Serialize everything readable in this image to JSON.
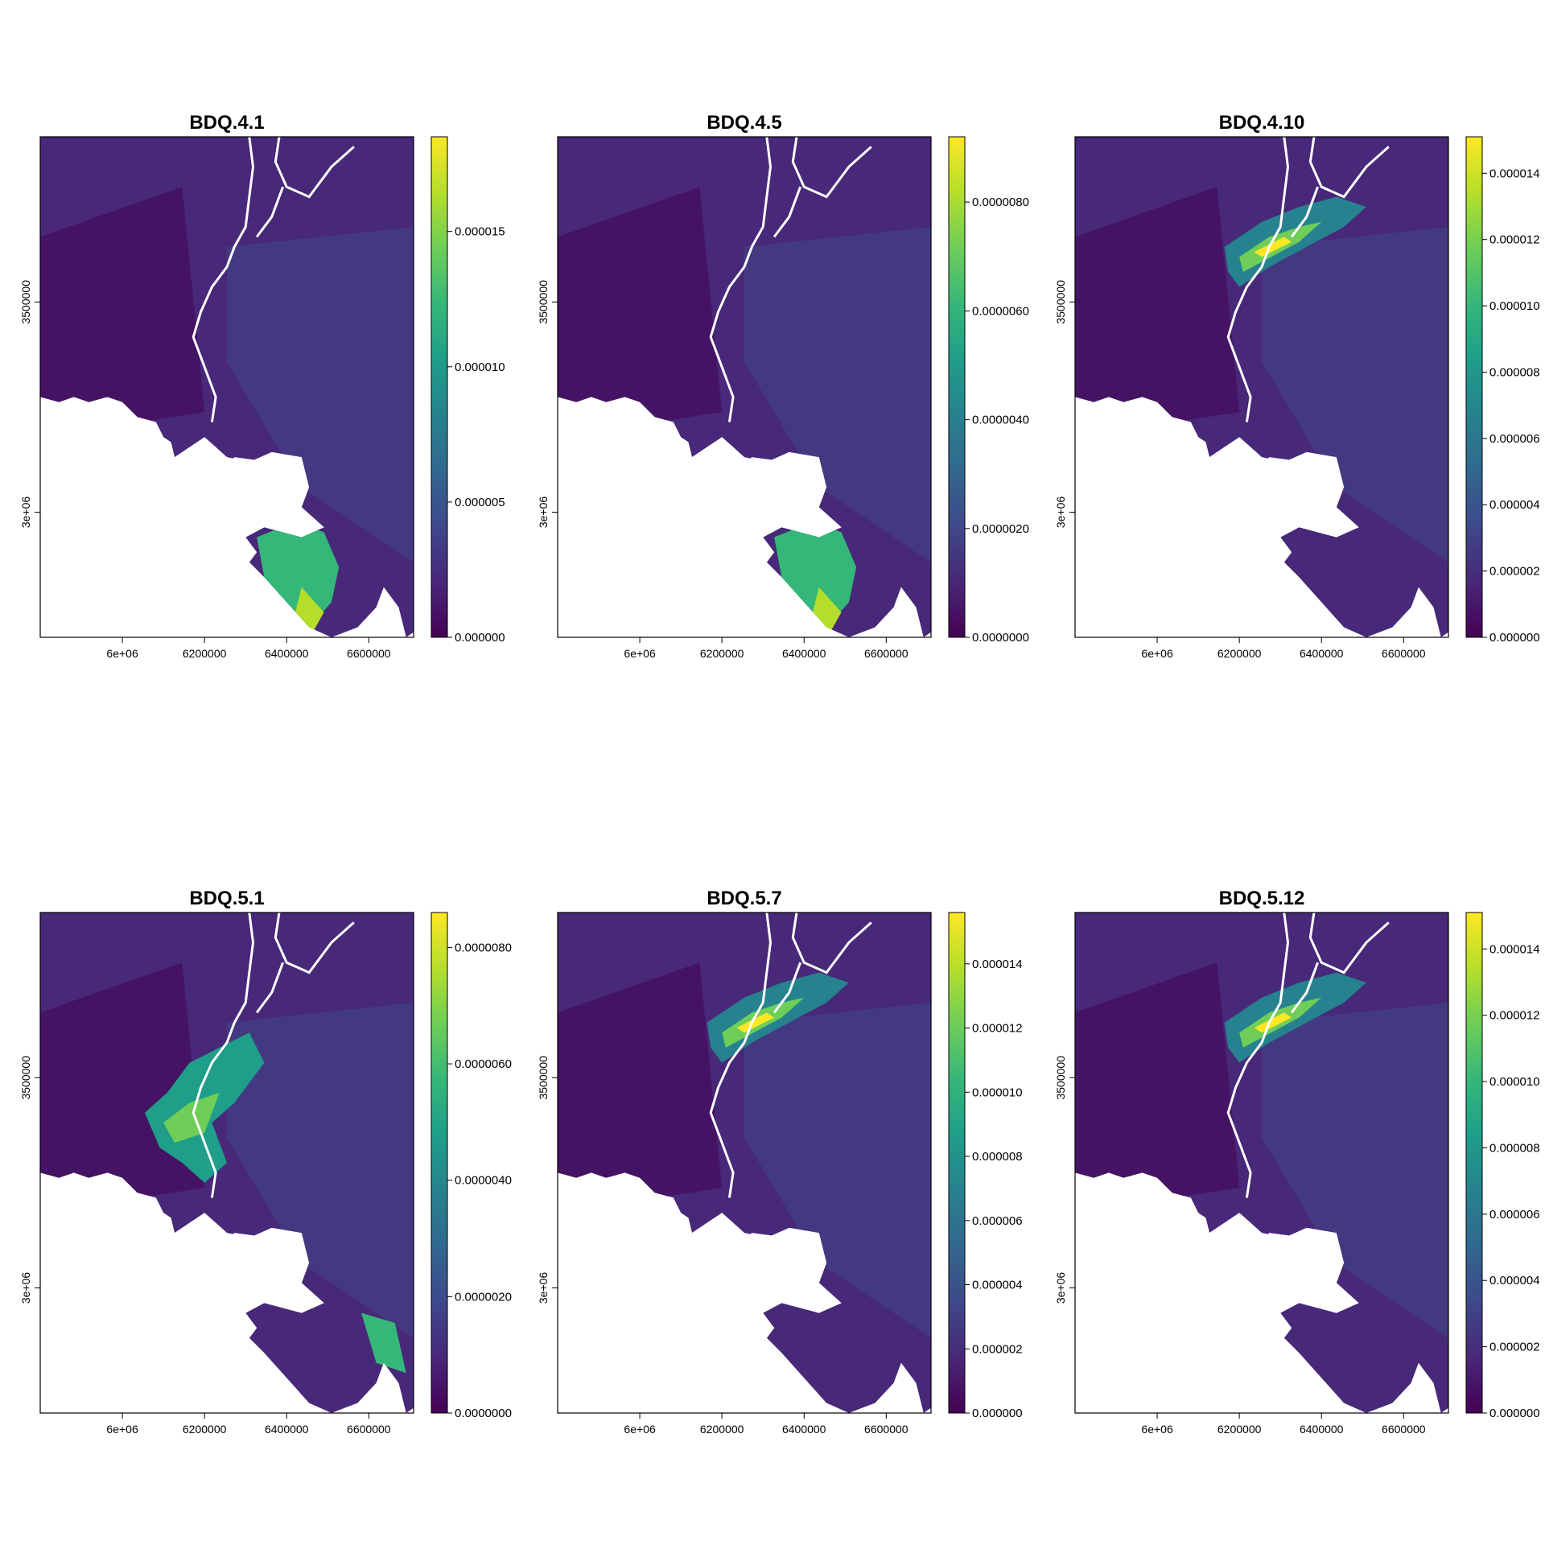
{
  "colors": {
    "background": "#ffffff",
    "frame": "#000000",
    "no_data": "#ffffff",
    "viridis": [
      "#440154",
      "#482878",
      "#3e4989",
      "#31688e",
      "#26828e",
      "#1f9e89",
      "#35b779",
      "#6ece58",
      "#b5de2b",
      "#fde725"
    ]
  },
  "figure": {
    "x_ticks": [
      "6e+06",
      "6200000",
      "6400000",
      "6600000"
    ],
    "y_ticks": [
      "3e+06",
      "3500000"
    ]
  },
  "panels": [
    {
      "title": "BDQ.4.1",
      "colorbar_ticks": [
        "0.000000",
        "0.000005",
        "0.000010",
        "0.000015"
      ],
      "colorbar_max": 1.85e-05,
      "hotspot": "south"
    },
    {
      "title": "BDQ.4.5",
      "colorbar_ticks": [
        "0.0000000",
        "0.0000020",
        "0.0000040",
        "0.0000060",
        "0.0000080"
      ],
      "colorbar_max": 9.2e-06,
      "hotspot": "south"
    },
    {
      "title": "BDQ.4.10",
      "colorbar_ticks": [
        "0.000000",
        "0.000002",
        "0.000004",
        "0.000006",
        "0.000008",
        "0.000010",
        "0.000012",
        "0.000014"
      ],
      "colorbar_max": 1.51e-05,
      "hotspot": "north"
    },
    {
      "title": "BDQ.5.1",
      "colorbar_ticks": [
        "0.0000000",
        "0.0000020",
        "0.0000040",
        "0.0000060",
        "0.0000080"
      ],
      "colorbar_max": 8.6e-06,
      "hotspot": "central"
    },
    {
      "title": "BDQ.5.7",
      "colorbar_ticks": [
        "0.000000",
        "0.000002",
        "0.000004",
        "0.000006",
        "0.000008",
        "0.000010",
        "0.000012",
        "0.000014"
      ],
      "colorbar_max": 1.56e-05,
      "hotspot": "north"
    },
    {
      "title": "BDQ.5.12",
      "colorbar_ticks": [
        "0.000000",
        "0.000002",
        "0.000004",
        "0.000006",
        "0.000008",
        "0.000010",
        "0.000012",
        "0.000014"
      ],
      "colorbar_max": 1.51e-05,
      "hotspot": "north"
    }
  ]
}
